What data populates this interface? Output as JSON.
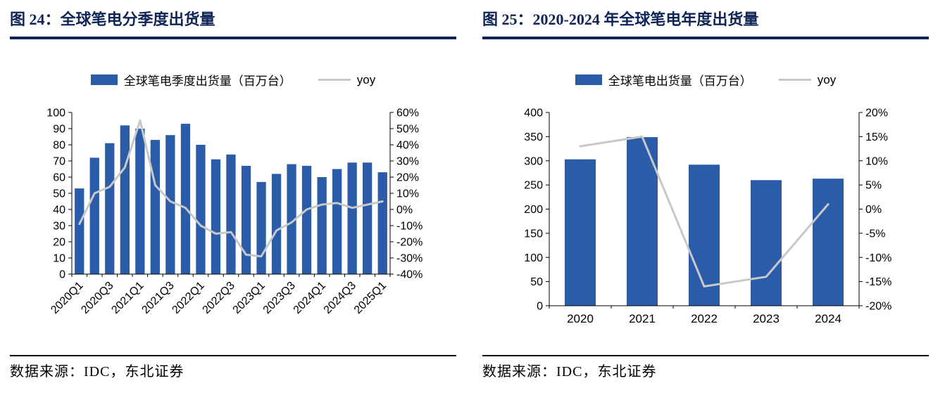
{
  "colors": {
    "bar": "#2B5CA9",
    "line": "#C8C8C8",
    "navy": "#0F2557",
    "axis": "#000000"
  },
  "panels": [
    {
      "title": "图 24：全球笔电分季度出货量",
      "source": "数据来源：IDC，东北证券"
    },
    {
      "title": "图 25：2020-2024 年全球笔电年度出货量",
      "source": "数据来源：IDC，东北证券"
    }
  ],
  "chart_data": [
    {
      "type": "bar+line",
      "title": "全球笔电分季度出货量",
      "categories": [
        "2020Q1",
        "2020Q2",
        "2020Q3",
        "2020Q4",
        "2021Q1",
        "2021Q2",
        "2021Q3",
        "2021Q4",
        "2022Q1",
        "2022Q2",
        "2022Q3",
        "2022Q4",
        "2023Q1",
        "2023Q2",
        "2023Q3",
        "2023Q4",
        "2024Q1",
        "2024Q2",
        "2024Q3",
        "2024Q4",
        "2025Q1"
      ],
      "series": [
        {
          "name": "全球笔电季度出货量（百万台）",
          "type": "bar",
          "axis": "left",
          "values": [
            53,
            72,
            81,
            92,
            90,
            83,
            86,
            93,
            80,
            71,
            74,
            67,
            57,
            62,
            68,
            67,
            60,
            65,
            69,
            69,
            63
          ]
        },
        {
          "name": "yoy",
          "type": "line",
          "axis": "right",
          "unit": "%",
          "values": [
            -9,
            10,
            14,
            26,
            55,
            15,
            5,
            1,
            -10,
            -15,
            -14,
            -28,
            -29,
            -13,
            -8,
            0,
            3,
            4,
            1,
            3,
            5
          ]
        }
      ],
      "left_axis": {
        "min": 0,
        "max": 100,
        "step": 10
      },
      "right_axis": {
        "min": -40,
        "max": 60,
        "step": 10,
        "unit": "%"
      },
      "x_labels_shown": [
        "2020Q1",
        "2020Q3",
        "2021Q1",
        "2021Q3",
        "2022Q1",
        "2022Q3",
        "2023Q1",
        "2023Q3",
        "2024Q1",
        "2024Q3",
        "2025Q1"
      ],
      "legend_position": "top",
      "grid": false
    },
    {
      "type": "bar+line",
      "title": "2020-2024 年全球笔电年度出货量",
      "categories": [
        "2020",
        "2021",
        "2022",
        "2023",
        "2024"
      ],
      "series": [
        {
          "name": "全球笔电出货量（百万台）",
          "type": "bar",
          "axis": "left",
          "values": [
            303,
            349,
            292,
            260,
            263
          ]
        },
        {
          "name": "yoy",
          "type": "line",
          "axis": "right",
          "unit": "%",
          "values": [
            13,
            15,
            -16,
            -14,
            1
          ]
        }
      ],
      "left_axis": {
        "min": 0,
        "max": 400,
        "step": 50
      },
      "right_axis": {
        "min": -20,
        "max": 20,
        "step": 5,
        "unit": "%"
      },
      "x_labels_shown": [
        "2020",
        "2021",
        "2022",
        "2023",
        "2024"
      ],
      "legend_position": "top",
      "grid": false
    }
  ]
}
